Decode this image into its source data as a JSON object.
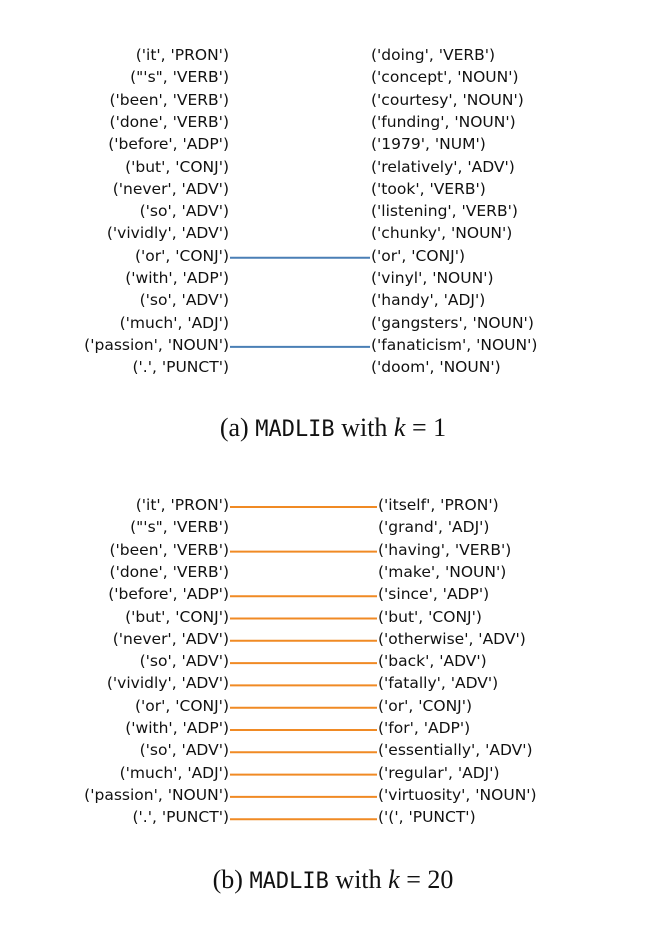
{
  "figures": [
    {
      "id": "a",
      "caption": {
        "prefix": "(a)",
        "method": "MADLIB",
        "with": "with",
        "var": "k",
        "eq": "=",
        "value": "1"
      },
      "line_color": "#4a7fb5",
      "left_tokens": [
        "('it', 'PRON')",
        "(\"'s\", 'VERB')",
        "('been', 'VERB')",
        "('done', 'VERB')",
        "('before', 'ADP')",
        "('but', 'CONJ')",
        "('never', 'ADV')",
        "('so', 'ADV')",
        "('vividly', 'ADV')",
        "('or', 'CONJ')",
        "('with', 'ADP')",
        "('so', 'ADV')",
        "('much', 'ADJ')",
        "('passion', 'NOUN')",
        "('.', 'PUNCT')"
      ],
      "right_tokens": [
        "('doing', 'VERB')",
        "('concept', 'NOUN')",
        "('courtesy', 'NOUN')",
        "('funding', 'NOUN')",
        "('1979', 'NUM')",
        "('relatively', 'ADV')",
        "('took', 'VERB')",
        "('listening', 'VERB')",
        "('chunky', 'NOUN')",
        "('or', 'CONJ')",
        "('vinyl', 'NOUN')",
        "('handy', 'ADJ')",
        "('gangsters', 'NOUN')",
        "('fanaticism', 'NOUN')",
        "('doom', 'NOUN')"
      ],
      "links": [
        9,
        13
      ]
    },
    {
      "id": "b",
      "caption": {
        "prefix": "(b)",
        "method": "MADLIB",
        "with": "with",
        "var": "k",
        "eq": "=",
        "value": "20"
      },
      "line_color": "#f08a24",
      "left_tokens": [
        "('it', 'PRON')",
        "(\"'s\", 'VERB')",
        "('been', 'VERB')",
        "('done', 'VERB')",
        "('before', 'ADP')",
        "('but', 'CONJ')",
        "('never', 'ADV')",
        "('so', 'ADV')",
        "('vividly', 'ADV')",
        "('or', 'CONJ')",
        "('with', 'ADP')",
        "('so', 'ADV')",
        "('much', 'ADJ')",
        "('passion', 'NOUN')",
        "('.', 'PUNCT')"
      ],
      "right_tokens": [
        "('itself', 'PRON')",
        "('grand', 'ADJ')",
        "('having', 'VERB')",
        "('make', 'NOUN')",
        "('since', 'ADP')",
        "('but', 'CONJ')",
        "('otherwise', 'ADV')",
        "('back', 'ADV')",
        "('fatally', 'ADV')",
        "('or', 'CONJ')",
        "('for', 'ADP')",
        "('essentially', 'ADV')",
        "('regular', 'ADJ')",
        "('virtuosity', 'NOUN')",
        "('(', 'PUNCT')"
      ],
      "links": [
        0,
        2,
        4,
        5,
        6,
        7,
        8,
        9,
        10,
        11,
        12,
        13,
        14
      ]
    }
  ]
}
